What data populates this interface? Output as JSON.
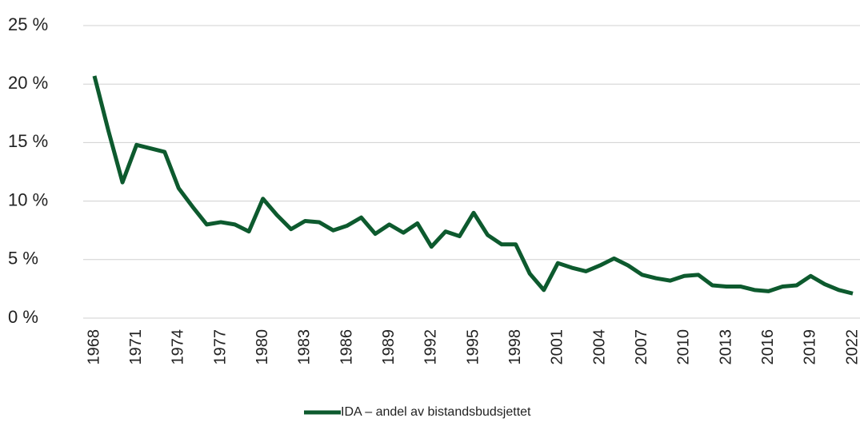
{
  "chart_data": {
    "type": "line",
    "x": [
      1968,
      1969,
      1970,
      1971,
      1972,
      1973,
      1974,
      1975,
      1976,
      1977,
      1978,
      1979,
      1980,
      1981,
      1982,
      1983,
      1984,
      1985,
      1986,
      1987,
      1988,
      1989,
      1990,
      1991,
      1992,
      1993,
      1994,
      1995,
      1996,
      1997,
      1998,
      1999,
      2000,
      2001,
      2002,
      2003,
      2004,
      2005,
      2006,
      2007,
      2008,
      2009,
      2010,
      2011,
      2012,
      2013,
      2014,
      2015,
      2016,
      2017,
      2018,
      2019,
      2020,
      2021,
      2022
    ],
    "series": [
      {
        "name": "IDA – andel av bistandsbudsjettet",
        "color": "#0d5a2e",
        "values": [
          20.7,
          16,
          11.6,
          14.8,
          14.5,
          14.2,
          11.1,
          9.5,
          8.0,
          8.2,
          8.0,
          7.4,
          10.2,
          8.8,
          7.6,
          8.3,
          8.2,
          7.5,
          7.9,
          8.6,
          7.2,
          8.0,
          7.3,
          8.1,
          6.1,
          7.4,
          7.0,
          9.0,
          7.1,
          6.3,
          6.3,
          3.8,
          2.4,
          4.7,
          4.3,
          4.0,
          4.5,
          5.1,
          4.5,
          3.7,
          3.4,
          3.2,
          3.6,
          3.7,
          2.8,
          2.7,
          2.7,
          2.4,
          2.3,
          2.7,
          2.8,
          3.6,
          2.9,
          2.4,
          2.1
        ]
      }
    ],
    "xlim": [
      1968,
      2022
    ],
    "xticks": [
      1968,
      1971,
      1974,
      1977,
      1980,
      1983,
      1986,
      1989,
      1992,
      1995,
      1998,
      2001,
      2004,
      2007,
      2010,
      2013,
      2016,
      2019,
      2022
    ],
    "ylim": [
      0,
      25
    ],
    "yticks": [
      {
        "value": 0,
        "label": "0 %"
      },
      {
        "value": 5,
        "label": "5 %"
      },
      {
        "value": 10,
        "label": "10 %"
      },
      {
        "value": 15,
        "label": "15 %"
      },
      {
        "value": 20,
        "label": "20 %"
      },
      {
        "value": 25,
        "label": "25 %"
      }
    ],
    "grid": true,
    "legend": "bottom"
  }
}
